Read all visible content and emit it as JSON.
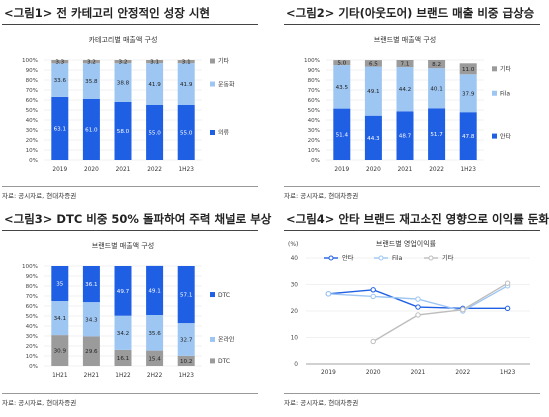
{
  "colors": {
    "blue": "#1f5fe3",
    "lightblue": "#9ec6f3",
    "gray": "#9b9b9b",
    "lightgray": "#bdbdbd",
    "grid": "#e3e3e3"
  },
  "panels": [
    {
      "title": "<그림1> 전 카테고리 안정적인 성장 시현",
      "source": "자료: 공시자료, 현대차증권",
      "chart_data": {
        "type": "bar",
        "stacked": true,
        "title": "카테고리별 매출액 구성",
        "categories": [
          "2019",
          "2020",
          "2021",
          "2022",
          "1H23"
        ],
        "yticks": [
          "0%",
          "10%",
          "20%",
          "30%",
          "40%",
          "50%",
          "60%",
          "70%",
          "80%",
          "90%",
          "100%"
        ],
        "ylim": [
          0,
          100
        ],
        "legend_position": "right",
        "series": [
          {
            "name": "의류",
            "color": "blue",
            "values": [
              63.1,
              61.0,
              58.0,
              55.0,
              55.0
            ],
            "labels": [
              "63.1",
              "61.0",
              "58.0",
              "55.0",
              "55.0"
            ]
          },
          {
            "name": "운동화",
            "color": "lightblue",
            "values": [
              33.6,
              35.8,
              38.8,
              41.9,
              41.9
            ],
            "labels": [
              "33.6",
              "35.8",
              "38.8",
              "41.9",
              "41.9"
            ]
          },
          {
            "name": "기타",
            "color": "gray",
            "values": [
              3.3,
              3.2,
              3.2,
              3.1,
              3.1
            ],
            "labels": [
              "3.3",
              "3.2",
              "3.2",
              "3.1",
              "3.1"
            ]
          }
        ]
      }
    },
    {
      "title": "<그림2> 기타(아웃도어) 브랜드 매출 비중 급상승",
      "source": "자료: 공시자료, 현대차증권",
      "chart_data": {
        "type": "bar",
        "stacked": true,
        "title": "브랜드별 매출액 구성",
        "categories": [
          "2019",
          "2020",
          "2021",
          "2022",
          "1H23"
        ],
        "yticks": [
          "0%",
          "10%",
          "20%",
          "30%",
          "40%",
          "50%",
          "60%",
          "70%",
          "80%",
          "90%",
          "100%"
        ],
        "ylim": [
          0,
          100
        ],
        "legend_position": "right",
        "series": [
          {
            "name": "안타",
            "color": "blue",
            "values": [
              51.4,
              44.3,
              48.7,
              51.7,
              47.8
            ],
            "labels": [
              "51.4",
              "44.3",
              "48.7",
              "51.7",
              "47.8"
            ]
          },
          {
            "name": "Fila",
            "color": "lightblue",
            "values": [
              43.5,
              49.1,
              44.2,
              40.1,
              37.9
            ],
            "labels": [
              "43.5",
              "49.1",
              "44.2",
              "40.1",
              "37.9"
            ]
          },
          {
            "name": "기타",
            "color": "gray",
            "values": [
              5.0,
              6.5,
              7.1,
              8.2,
              11.0
            ],
            "labels": [
              "5.0",
              "6.5",
              "7.1",
              "8.2",
              "11.0"
            ]
          }
        ]
      }
    },
    {
      "title": "<그림3> DTC 비중 50% 돌파하여 주력 채널로 부상",
      "source": "자료: 공시자료, 현대차증권",
      "chart_data": {
        "type": "bar",
        "stacked": true,
        "title": "브랜드별 매출액 구성",
        "categories": [
          "1H21",
          "2H21",
          "1H22",
          "2H22",
          "1H23"
        ],
        "yticks": [
          "0%",
          "10%",
          "20%",
          "30%",
          "40%",
          "50%",
          "60%",
          "70%",
          "80%",
          "90%",
          "100%"
        ],
        "ylim": [
          0,
          100
        ],
        "legend_position": "right",
        "series": [
          {
            "name": "DTC",
            "color": "gray",
            "values": [
              30.9,
              29.6,
              16.1,
              15.4,
              10.2
            ],
            "labels": [
              "30.9",
              "29.6",
              "16.1",
              "15.4",
              "10.2"
            ]
          },
          {
            "name": "온라인",
            "color": "lightblue",
            "values": [
              34.1,
              34.3,
              34.2,
              35.6,
              32.7
            ],
            "labels": [
              "34.1",
              "34.3",
              "34.2",
              "35.6",
              "32.7"
            ]
          },
          {
            "name": "DTC",
            "color": "blue",
            "values": [
              35.0,
              36.1,
              49.7,
              49.1,
              57.1
            ],
            "labels": [
              "35",
              "36.1",
              "49.7",
              "49.1",
              "57.1"
            ]
          }
        ]
      }
    },
    {
      "title": "<그림4> 안타 브랜드 재고소진 영향으로 이익률 둔화",
      "source": "자료: 공시자료, 현대차증권",
      "chart_data": {
        "type": "line",
        "title": "브랜드별 영업이익률",
        "ylabel": "(%)",
        "x": [
          "2019",
          "2020",
          "2021",
          "2022",
          "1H23"
        ],
        "ylim": [
          0,
          40
        ],
        "yticks": [
          "0",
          "10",
          "20",
          "30",
          "40"
        ],
        "legend_position": "top",
        "series": [
          {
            "name": "안타",
            "color": "blue",
            "values": [
              26.5,
              28.0,
              21.5,
              21.0,
              21.0
            ]
          },
          {
            "name": "Fila",
            "color": "lightblue",
            "values": [
              26.5,
              25.5,
              24.5,
              20.0,
              29.5
            ]
          },
          {
            "name": "기타",
            "color": "lightgray",
            "values": [
              null,
              8.5,
              18.5,
              20.5,
              30.5
            ]
          }
        ]
      }
    }
  ]
}
